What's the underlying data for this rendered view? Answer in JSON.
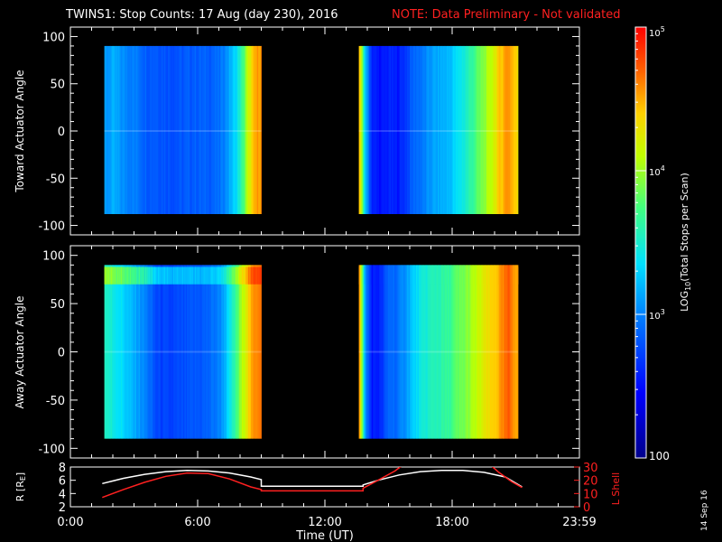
{
  "title": {
    "main": "TWINS1: Stop Counts: 17 Aug (day 230), 2016",
    "note": "NOTE: Data Preliminary - Not validated",
    "note_color": "#ff2020"
  },
  "stamp": "14 Sep 16",
  "colorbar": {
    "label": "LOG10(Total Stops per Scan)",
    "ticks": [
      {
        "value": 100,
        "label": "100"
      },
      {
        "value": 1000,
        "label": "10^3"
      },
      {
        "value": 10000,
        "label": "10^4"
      },
      {
        "value": 100000,
        "label": "10^5"
      }
    ],
    "range": [
      100,
      100000
    ],
    "scale": "log",
    "colormap": "rainbow (blue-cyan-green-yellow-red)"
  },
  "chart_data": [
    {
      "type": "heatmap",
      "panel": "toward",
      "ylabel": "Toward Actuator Angle",
      "ylim": [
        -110,
        110
      ],
      "yticks": [
        100,
        50,
        0,
        -50,
        -100
      ],
      "xlim_hours": [
        0,
        24
      ],
      "data_angle_range": [
        -88,
        90
      ],
      "coverage_hours": [
        [
          1.6,
          9.0
        ],
        [
          13.6,
          21.1
        ]
      ],
      "profile_log_counts": [
        {
          "t": 1.6,
          "v": 3.05
        },
        {
          "t": 2.0,
          "v": 3.15
        },
        {
          "t": 2.4,
          "v": 3.05
        },
        {
          "t": 2.8,
          "v": 3.0
        },
        {
          "t": 3.2,
          "v": 2.95
        },
        {
          "t": 3.6,
          "v": 2.85
        },
        {
          "t": 4.0,
          "v": 2.85
        },
        {
          "t": 4.6,
          "v": 2.8
        },
        {
          "t": 5.2,
          "v": 2.8
        },
        {
          "t": 5.8,
          "v": 2.85
        },
        {
          "t": 6.4,
          "v": 2.85
        },
        {
          "t": 7.0,
          "v": 2.9
        },
        {
          "t": 7.4,
          "v": 3.1
        },
        {
          "t": 7.8,
          "v": 3.35
        },
        {
          "t": 8.1,
          "v": 3.7
        },
        {
          "t": 8.4,
          "v": 4.2
        },
        {
          "t": 8.7,
          "v": 4.5
        },
        {
          "t": 9.0,
          "v": 4.6
        },
        {
          "t": 13.6,
          "v": 4.4
        },
        {
          "t": 13.9,
          "v": 3.2
        },
        {
          "t": 14.2,
          "v": 2.6
        },
        {
          "t": 14.6,
          "v": 2.5
        },
        {
          "t": 15.0,
          "v": 2.6
        },
        {
          "t": 15.4,
          "v": 2.55
        },
        {
          "t": 15.8,
          "v": 2.7
        },
        {
          "t": 16.2,
          "v": 2.9
        },
        {
          "t": 16.6,
          "v": 2.95
        },
        {
          "t": 17.0,
          "v": 3.1
        },
        {
          "t": 17.4,
          "v": 3.15
        },
        {
          "t": 17.8,
          "v": 3.2
        },
        {
          "t": 18.2,
          "v": 3.35
        },
        {
          "t": 18.6,
          "v": 3.5
        },
        {
          "t": 19.0,
          "v": 3.7
        },
        {
          "t": 19.4,
          "v": 3.9
        },
        {
          "t": 19.8,
          "v": 4.1
        },
        {
          "t": 20.2,
          "v": 4.4
        },
        {
          "t": 20.6,
          "v": 4.6
        },
        {
          "t": 21.1,
          "v": 4.3
        }
      ],
      "high_angle_band": null
    },
    {
      "type": "heatmap",
      "panel": "away",
      "ylabel": "Away Actuator Angle",
      "ylim": [
        -110,
        110
      ],
      "yticks": [
        100,
        50,
        0,
        -50,
        -100
      ],
      "xlim_hours": [
        0,
        24
      ],
      "data_angle_range": [
        -90,
        90
      ],
      "coverage_hours": [
        [
          1.6,
          9.0
        ],
        [
          13.6,
          21.1
        ]
      ],
      "profile_log_counts": [
        {
          "t": 1.6,
          "v": 3.55
        },
        {
          "t": 2.0,
          "v": 3.45
        },
        {
          "t": 2.4,
          "v": 3.35
        },
        {
          "t": 2.8,
          "v": 3.2
        },
        {
          "t": 3.2,
          "v": 3.1
        },
        {
          "t": 3.6,
          "v": 2.95
        },
        {
          "t": 4.0,
          "v": 2.75
        },
        {
          "t": 4.6,
          "v": 2.7
        },
        {
          "t": 5.2,
          "v": 2.75
        },
        {
          "t": 5.8,
          "v": 2.8
        },
        {
          "t": 6.4,
          "v": 2.85
        },
        {
          "t": 7.0,
          "v": 3.0
        },
        {
          "t": 7.4,
          "v": 3.3
        },
        {
          "t": 7.8,
          "v": 3.7
        },
        {
          "t": 8.1,
          "v": 4.1
        },
        {
          "t": 8.4,
          "v": 4.4
        },
        {
          "t": 8.7,
          "v": 4.6
        },
        {
          "t": 9.0,
          "v": 4.7
        },
        {
          "t": 13.6,
          "v": 4.5
        },
        {
          "t": 13.9,
          "v": 3.0
        },
        {
          "t": 14.2,
          "v": 2.55
        },
        {
          "t": 14.6,
          "v": 2.6
        },
        {
          "t": 15.0,
          "v": 2.9
        },
        {
          "t": 15.4,
          "v": 2.9
        },
        {
          "t": 15.8,
          "v": 3.1
        },
        {
          "t": 16.2,
          "v": 3.3
        },
        {
          "t": 16.6,
          "v": 3.45
        },
        {
          "t": 17.0,
          "v": 3.55
        },
        {
          "t": 17.4,
          "v": 3.6
        },
        {
          "t": 17.8,
          "v": 3.65
        },
        {
          "t": 18.2,
          "v": 3.8
        },
        {
          "t": 18.6,
          "v": 3.9
        },
        {
          "t": 19.0,
          "v": 4.05
        },
        {
          "t": 19.4,
          "v": 4.2
        },
        {
          "t": 19.8,
          "v": 4.35
        },
        {
          "t": 20.2,
          "v": 4.5
        },
        {
          "t": 20.6,
          "v": 4.7
        },
        {
          "t": 21.1,
          "v": 4.5
        }
      ],
      "high_angle_band": {
        "angles": [
          70,
          88
        ],
        "log_boost": 0.6
      }
    },
    {
      "type": "line",
      "panel": "orbit",
      "ylabel": "R [RE]",
      "ylabel2": "L Shell",
      "xlabel": "Time (UT)",
      "ylim": [
        2,
        8
      ],
      "yticks": [
        2,
        4,
        6,
        8
      ],
      "ylim2": [
        0,
        30
      ],
      "yticks2": [
        0,
        10,
        20,
        30
      ],
      "xlim_hours": [
        0,
        24
      ],
      "xticks": [
        {
          "hour": 0,
          "label": "0:00"
        },
        {
          "hour": 6,
          "label": "6:00"
        },
        {
          "hour": 12,
          "label": "12:00"
        },
        {
          "hour": 18,
          "label": "18:00"
        },
        {
          "hour": 24,
          "label": "23:59"
        }
      ],
      "series": [
        {
          "axis": "left",
          "color": "#ffffff",
          "points": [
            [
              1.5,
              5.5
            ],
            [
              2.5,
              6.3
            ],
            [
              3.5,
              6.9
            ],
            [
              4.5,
              7.3
            ],
            [
              5.5,
              7.5
            ],
            [
              6.5,
              7.4
            ],
            [
              7.5,
              7.1
            ],
            [
              8.5,
              6.5
            ],
            [
              9.0,
              6.1
            ],
            [
              9.0,
              5.1
            ],
            [
              13.8,
              5.1
            ],
            [
              13.8,
              5.3
            ],
            [
              14.5,
              6.0
            ],
            [
              15.5,
              6.8
            ],
            [
              16.5,
              7.3
            ],
            [
              17.5,
              7.5
            ],
            [
              18.5,
              7.5
            ],
            [
              19.5,
              7.2
            ],
            [
              20.5,
              6.5
            ],
            [
              21.3,
              5.0
            ]
          ]
        },
        {
          "axis": "right",
          "color": "#ff2020",
          "points": [
            [
              1.5,
              7
            ],
            [
              2.5,
              13
            ],
            [
              3.5,
              18.5
            ],
            [
              4.5,
              23
            ],
            [
              5.5,
              25.5
            ],
            [
              6.5,
              25
            ],
            [
              7.5,
              21
            ],
            [
              8.5,
              15
            ],
            [
              9.0,
              13
            ],
            [
              9.0,
              12
            ],
            [
              13.8,
              12
            ],
            [
              13.8,
              14
            ],
            [
              14.5,
              20
            ],
            [
              15.3,
              27
            ],
            [
              15.8,
              33
            ]
          ]
        },
        {
          "axis": "right",
          "color": "#ff2020",
          "points": [
            [
              19.7,
              33
            ],
            [
              20.2,
              26
            ],
            [
              20.8,
              19
            ],
            [
              21.3,
              14.5
            ]
          ]
        }
      ]
    }
  ]
}
